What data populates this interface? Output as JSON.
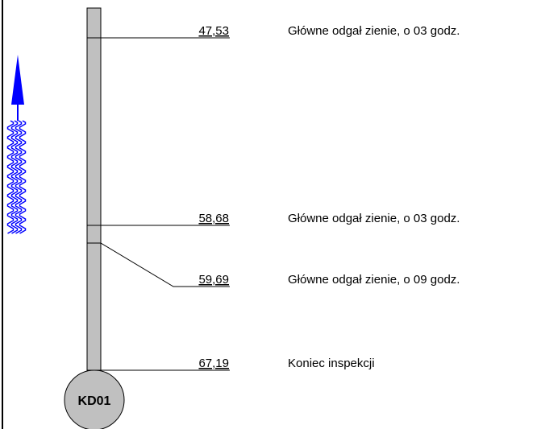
{
  "entries": [
    {
      "distance": "47,53",
      "description": "Główne odgał  zienie, o 03 godz."
    },
    {
      "distance": "58,68",
      "description": "Główne odgał  zienie, o 03 godz."
    },
    {
      "distance": "59,69",
      "description": "Główne odgał  zienie, o 09 godz."
    },
    {
      "distance": "67,19",
      "description": "Koniec inspekcji"
    }
  ],
  "manhole": "KD01"
}
